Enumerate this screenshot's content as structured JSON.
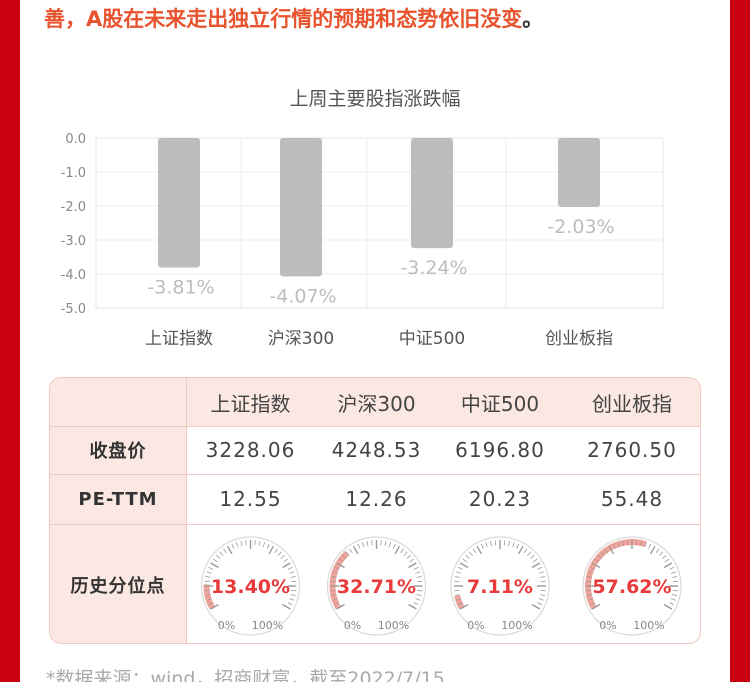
{
  "intro": {
    "text": "善，A股在未来走出独立行情的预期和态势依旧没变",
    "tail": "。"
  },
  "chart_data": {
    "type": "bar",
    "title": "上周主要股指涨跌幅",
    "categories": [
      "上证指数",
      "沪深300",
      "中证500",
      "创业板指"
    ],
    "values": [
      -3.81,
      -4.07,
      -3.24,
      -2.03
    ],
    "data_labels": [
      "-3.81%",
      "-4.07%",
      "-3.24%",
      "-2.03%"
    ],
    "y_ticks": [
      0,
      -1,
      -2,
      -3,
      -4,
      -5
    ],
    "y_tick_labels": [
      "0.0",
      "-1.0",
      "-2.0",
      "-3.0",
      "-4.0",
      "-5.0"
    ],
    "ylim": [
      -5,
      0
    ],
    "xlabel": "",
    "ylabel": "",
    "grid": true,
    "bar_color": "#bdbdbd",
    "label_color": "#bdbdbd"
  },
  "table": {
    "header": [
      "上证指数",
      "沪深300",
      "中证500",
      "创业板指"
    ],
    "rows": [
      {
        "label": "收盘价",
        "values": [
          "3228.06",
          "4248.53",
          "6196.80",
          "2760.50"
        ]
      },
      {
        "label": "PE-TTM",
        "values": [
          "12.55",
          "12.26",
          "20.23",
          "55.48"
        ]
      }
    ],
    "percentile": {
      "label": "历史分位点",
      "values": [
        "13.40%",
        "32.71%",
        "7.11%",
        "57.62%"
      ],
      "fractions": [
        0.134,
        0.3271,
        0.0711,
        0.5762
      ],
      "min_label": "0%",
      "max_label": "100%",
      "accent_color": "#e83a3a",
      "fill_color": "#f2a49a"
    }
  },
  "footnote": "*数据来源：wind，招商财富，截至2022/7/15"
}
